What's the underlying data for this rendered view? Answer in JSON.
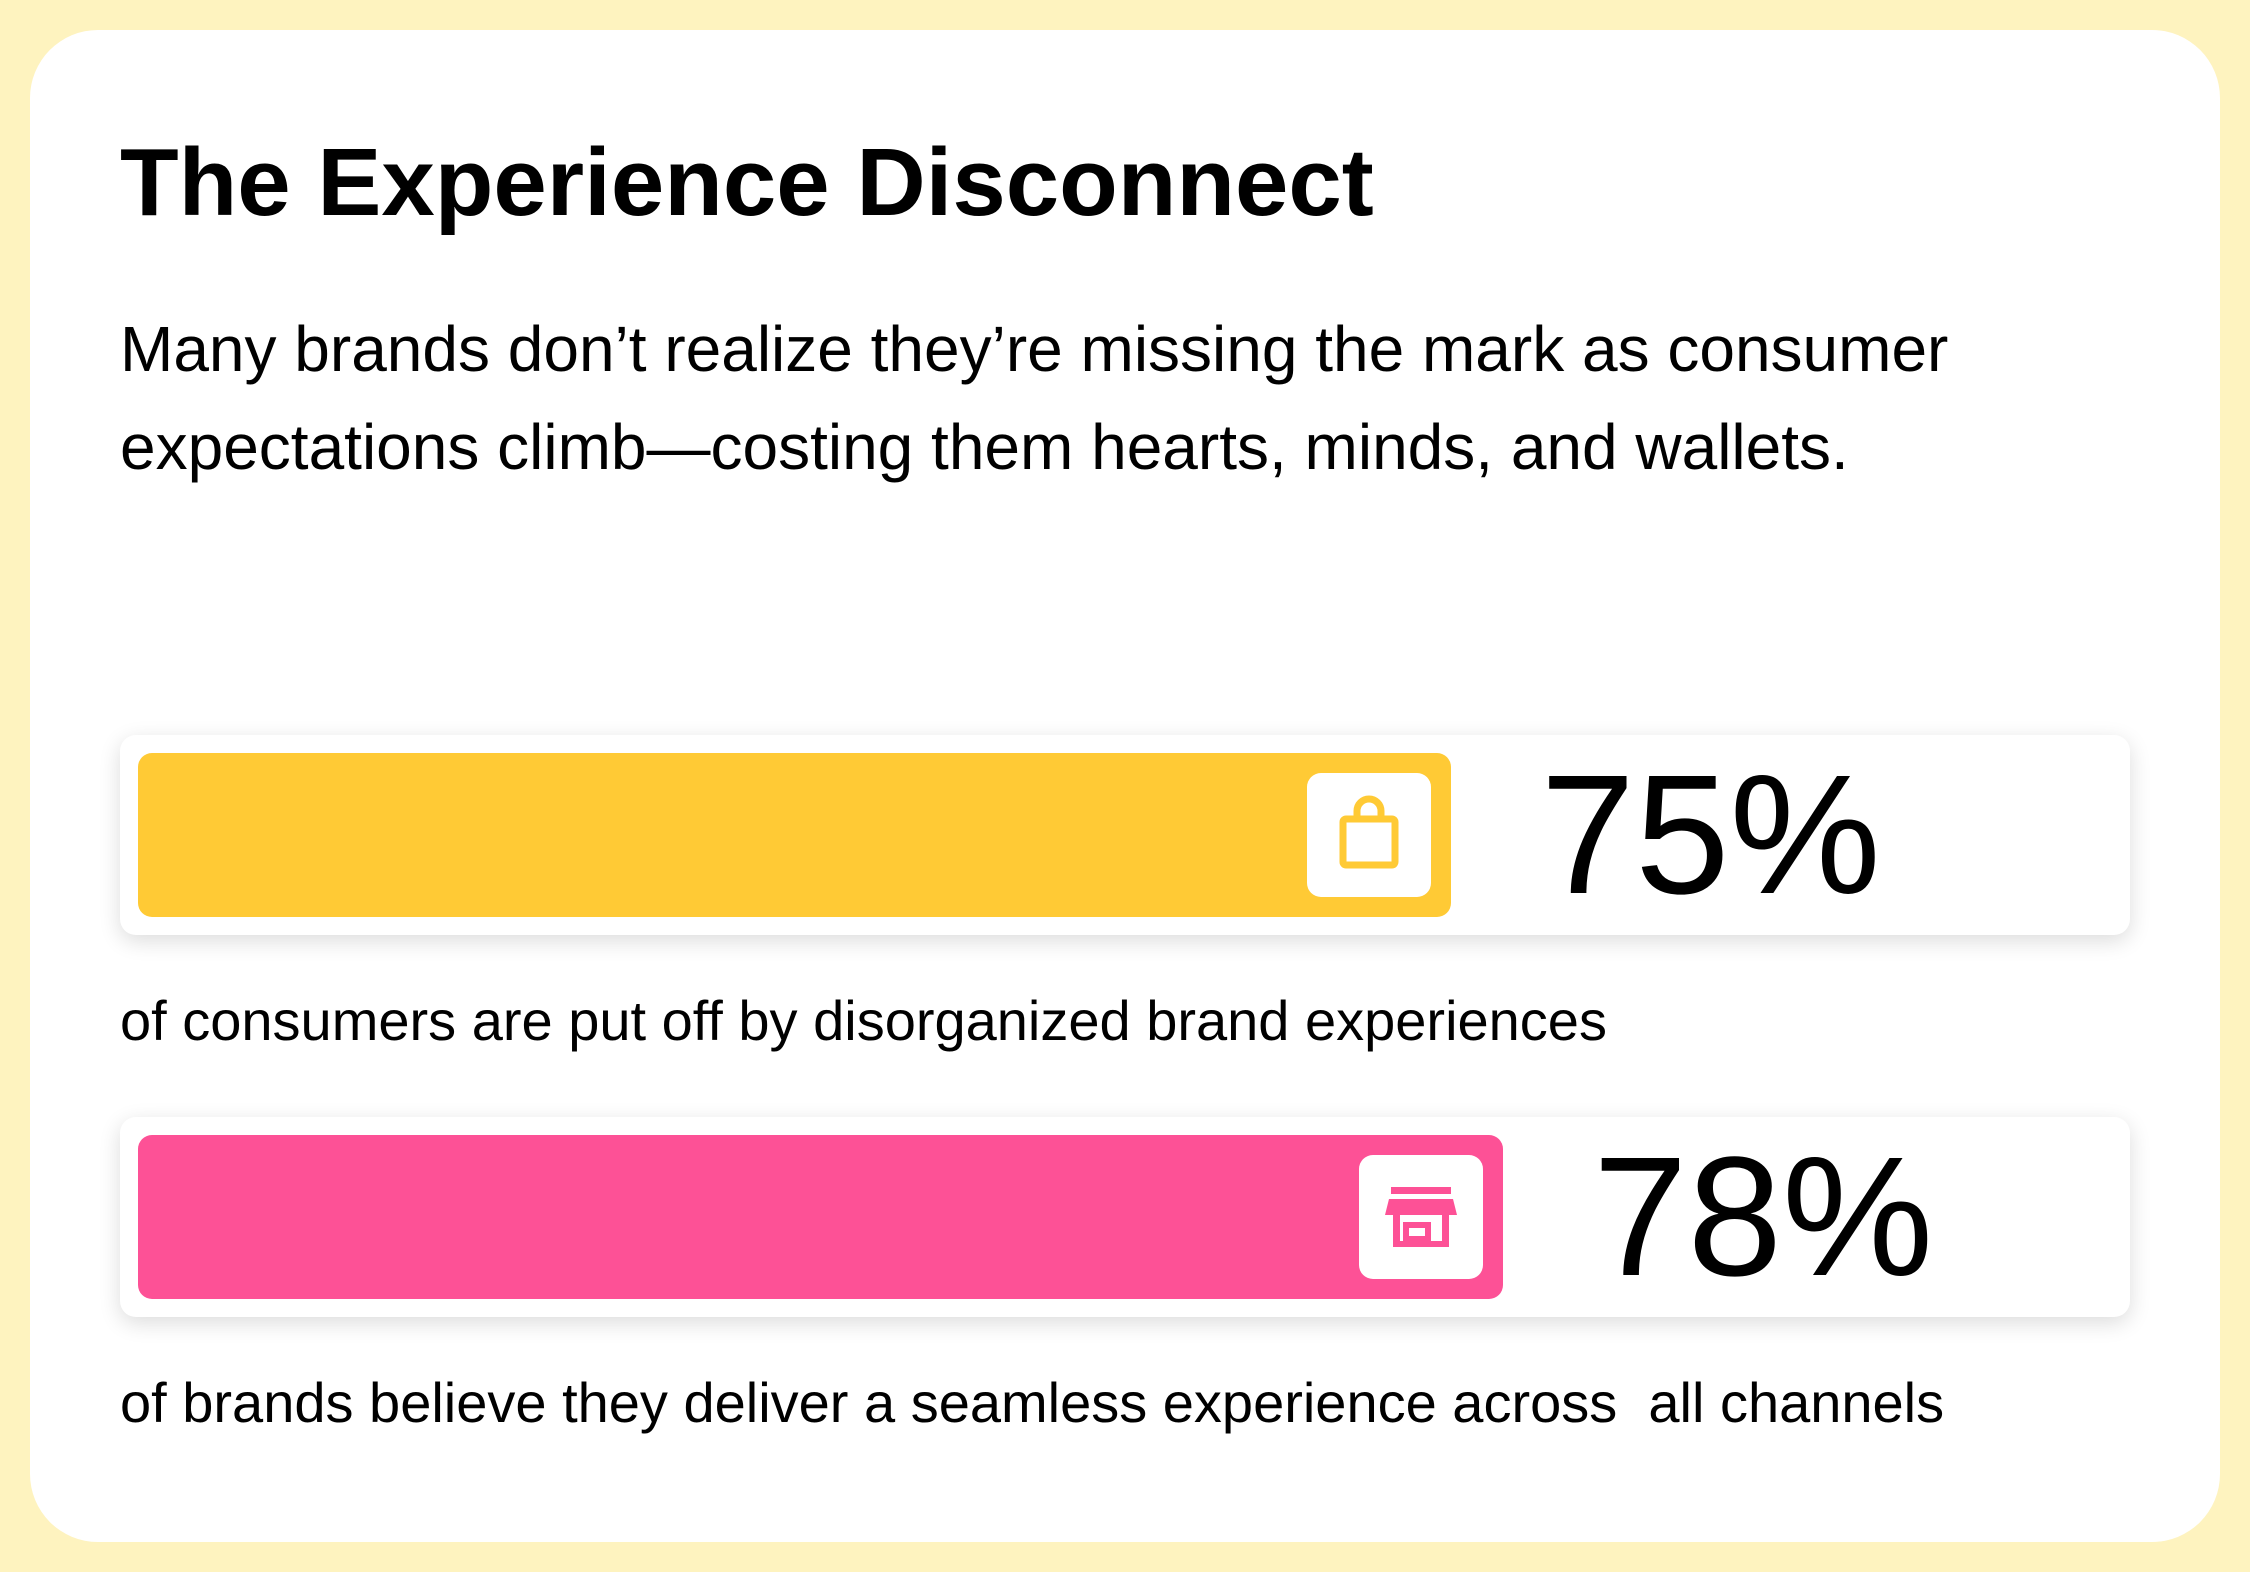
{
  "header": {
    "title": "The Experience Disconnect",
    "subtitle": "Many brands don’t realize they’re missing the mark as consumer expectations climb—costing them hearts, minds, and wallets."
  },
  "colors": {
    "background": "#FEF3BF",
    "card": "#FFFFFF",
    "bar_1": "#FFCA35",
    "bar_2": "#FD5196"
  },
  "chart_data": {
    "type": "bar",
    "orientation": "horizontal",
    "unit": "%",
    "bars": [
      {
        "value": 75,
        "label": "75%",
        "caption": "of consumers are put off by disorganized brand experiences",
        "color": "#FFCA35",
        "icon": "shopping-bag-icon"
      },
      {
        "value": 78,
        "label": "78%",
        "caption": "of brands believe they deliver a seamless experience across  all channels",
        "color": "#FD5196",
        "icon": "storefront-icon"
      }
    ]
  }
}
